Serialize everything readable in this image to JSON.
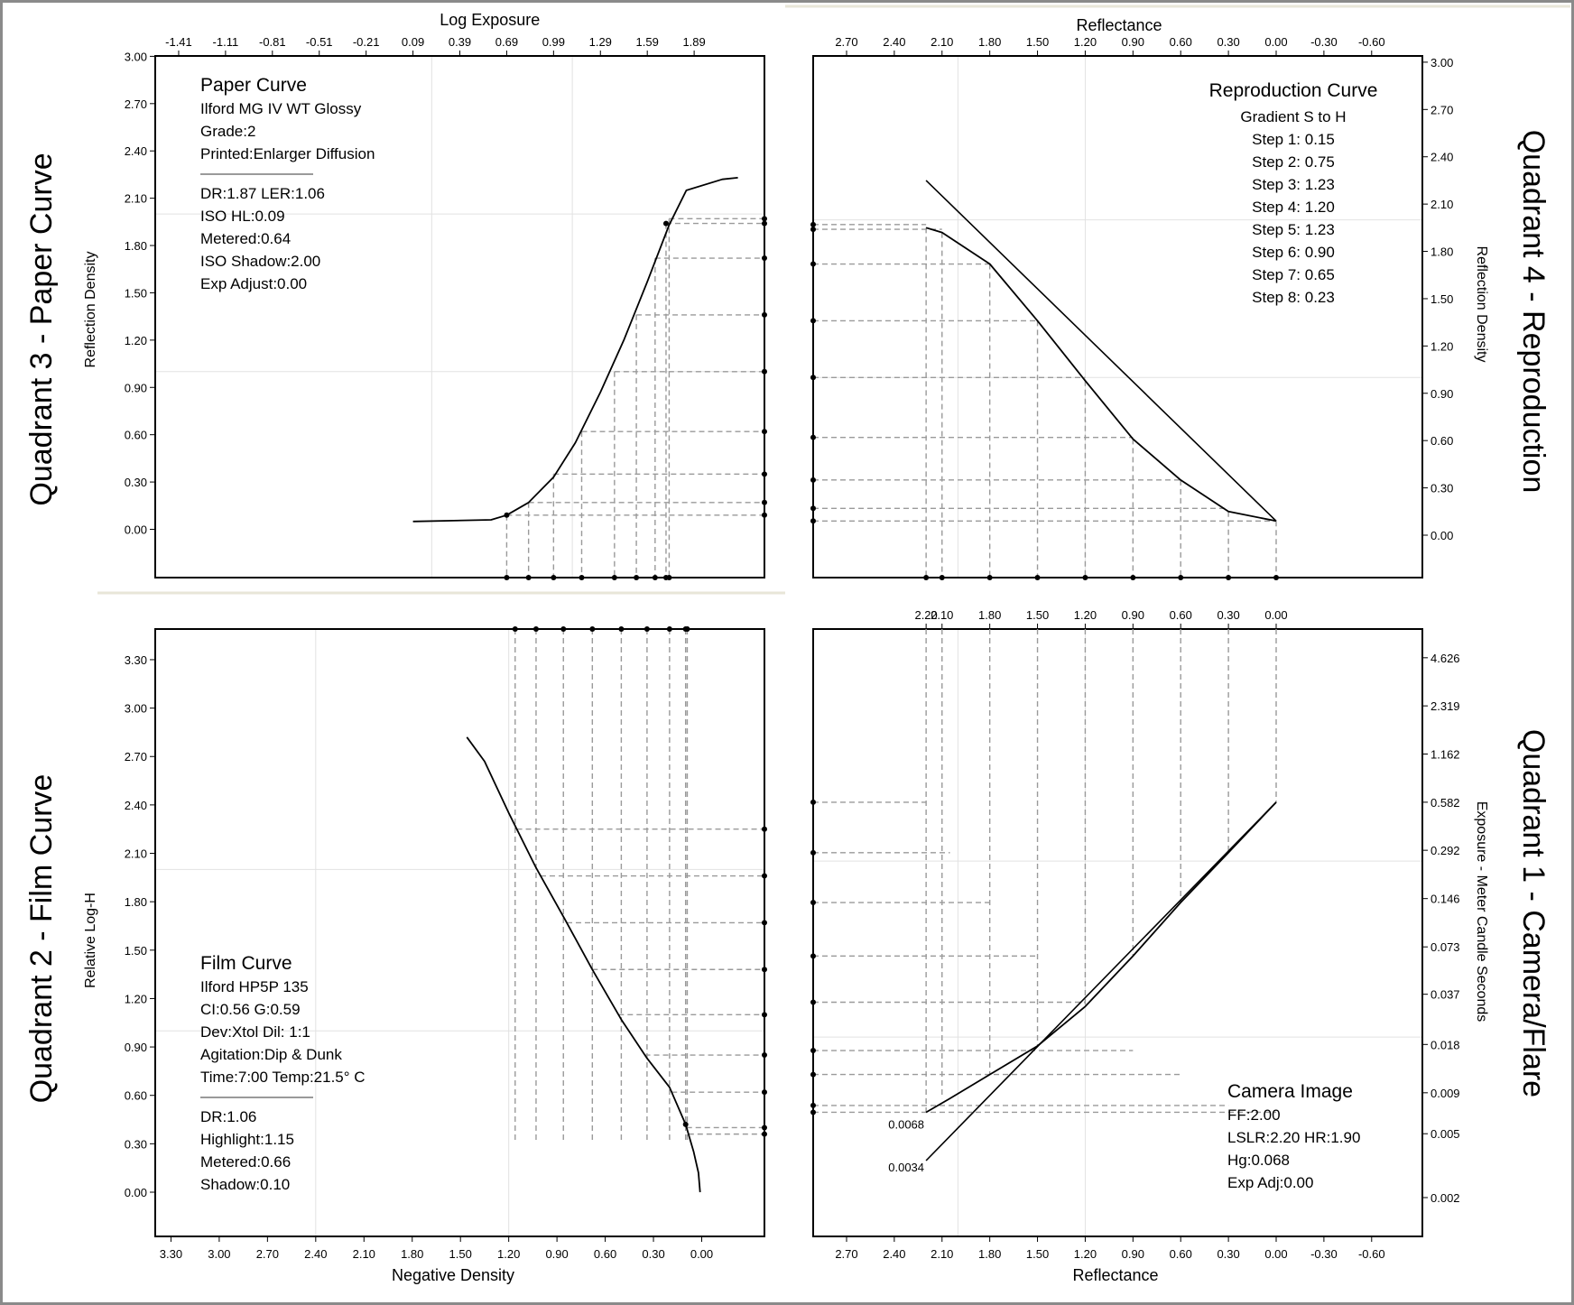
{
  "chart_data": [
    {
      "id": "q3",
      "type": "line",
      "quadrant_title": "Quadrant 3 - Paper Curve",
      "top_axis_title": "Log Exposure",
      "top_ticks": [
        "-1.41",
        "-1.11",
        "-0.81",
        "-0.51",
        "-0.21",
        "0.09",
        "0.39",
        "0.69",
        "0.99",
        "1.29",
        "1.59",
        "1.89"
      ],
      "y_title": "Reflection Density",
      "y_ticks": [
        "0.00",
        "0.30",
        "0.60",
        "0.90",
        "1.20",
        "1.50",
        "1.80",
        "2.10",
        "2.40",
        "2.70",
        "3.00"
      ],
      "xlim": [
        -1.56,
        2.34
      ],
      "ylim": [
        -0.3,
        3.0
      ],
      "annotation_title": "Paper Curve",
      "annotation_lines": [
        "Ilford MG IV WT  Glossy",
        "Grade:2",
        "Printed:Enlarger Diffusion"
      ],
      "annotation_lines2": [
        "DR:1.87  LER:1.06",
        "ISO HL:0.09",
        "Metered:0.64",
        "ISO Shadow:2.00",
        "Exp Adjust:0.00"
      ],
      "curve": [
        [
          0.09,
          0.05
        ],
        [
          0.59,
          0.06
        ],
        [
          0.69,
          0.09
        ],
        [
          0.83,
          0.17
        ],
        [
          0.99,
          0.33
        ],
        [
          1.13,
          0.55
        ],
        [
          1.29,
          0.87
        ],
        [
          1.44,
          1.2
        ],
        [
          1.59,
          1.57
        ],
        [
          1.73,
          1.93
        ],
        [
          1.84,
          2.15
        ],
        [
          2.07,
          2.22
        ],
        [
          2.17,
          2.23
        ]
      ],
      "markers": [
        [
          0.69,
          0.09
        ],
        [
          0.83,
          0.17
        ],
        [
          0.99,
          0.35
        ],
        [
          1.17,
          0.62
        ],
        [
          1.38,
          1.0
        ],
        [
          1.52,
          1.36
        ],
        [
          1.64,
          1.72
        ],
        [
          1.71,
          1.94
        ],
        [
          1.73,
          1.97
        ]
      ]
    },
    {
      "id": "q4",
      "type": "line",
      "quadrant_title": "Quadrant 4 - Reproduction",
      "top_axis_title": "Reflectance",
      "top_ticks": [
        "2.70",
        "2.40",
        "2.10",
        "1.80",
        "1.50",
        "1.20",
        "0.90",
        "0.60",
        "0.30",
        "0.00",
        "-0.30",
        "-0.60"
      ],
      "y_title": "Reflection Density",
      "y_ticks": [
        "0.00",
        "0.30",
        "0.60",
        "0.90",
        "1.20",
        "1.50",
        "1.80",
        "2.10",
        "2.40",
        "2.70",
        "3.00"
      ],
      "xlim": [
        2.92,
        -0.9
      ],
      "ylim": [
        -0.3,
        3.0
      ],
      "annotation_title": "Reproduction Curve",
      "annotation_lines": [
        "Gradient S to H",
        "Step 1: 0.15",
        "Step 2: 0.75",
        "Step 3: 1.23",
        "Step 4: 1.20",
        "Step 5: 1.23",
        "Step 6: 0.90",
        "Step 7: 0.65",
        "Step 8: 0.23"
      ],
      "ideal_line": [
        [
          2.2,
          2.25
        ],
        [
          0.0,
          0.09
        ]
      ],
      "curve": [
        [
          2.2,
          1.95
        ],
        [
          2.1,
          1.92
        ],
        [
          1.8,
          1.72
        ],
        [
          1.5,
          1.36
        ],
        [
          1.2,
          0.98
        ],
        [
          0.9,
          0.61
        ],
        [
          0.6,
          0.35
        ],
        [
          0.3,
          0.15
        ],
        [
          0.0,
          0.09
        ]
      ],
      "markers_left_y": [
        1.97,
        1.94,
        1.72,
        1.36,
        1.0,
        0.62,
        0.35,
        0.17,
        0.09
      ],
      "markers_bottom_x": [
        2.2,
        2.1,
        1.8,
        1.5,
        1.2,
        0.9,
        0.6,
        0.3,
        0.0
      ]
    },
    {
      "id": "q2",
      "type": "line",
      "quadrant_title": "Quadrant 2 - Film Curve",
      "x_title": "Negative Density",
      "x_ticks": [
        "3.30",
        "3.00",
        "2.70",
        "2.40",
        "2.10",
        "1.80",
        "1.50",
        "1.20",
        "0.90",
        "0.60",
        "0.30",
        "0.00"
      ],
      "y_title": "Relative Log-H",
      "y_ticks": [
        "0.00",
        "0.30",
        "0.60",
        "0.90",
        "1.20",
        "1.50",
        "1.80",
        "2.10",
        "2.40",
        "2.70",
        "3.00",
        "3.30"
      ],
      "xlim": [
        3.4,
        -0.42
      ],
      "ylim": [
        -0.28,
        3.5
      ],
      "annotation_title": "Film Curve",
      "annotation_lines": [
        "Ilford HP5P 135",
        "CI:0.56  G:0.59",
        "Dev:Xtol  Dil: 1:1",
        "Agitation:Dip & Dunk",
        "Time:7:00  Temp:21.5° C"
      ],
      "annotation_lines2": [
        "DR:1.06",
        "Highlight:1.15",
        "Metered:0.66",
        "Shadow:0.10"
      ],
      "curve": [
        [
          1.46,
          2.82
        ],
        [
          1.35,
          2.67
        ],
        [
          1.2,
          2.35
        ],
        [
          1.03,
          2.01
        ],
        [
          0.85,
          1.69
        ],
        [
          0.68,
          1.38
        ],
        [
          0.5,
          1.07
        ],
        [
          0.34,
          0.83
        ],
        [
          0.2,
          0.65
        ],
        [
          0.1,
          0.42
        ],
        [
          0.05,
          0.25
        ],
        [
          0.02,
          0.12
        ],
        [
          0.01,
          0.0
        ]
      ],
      "markers_top_x": [
        1.16,
        1.03,
        0.86,
        0.68,
        0.5,
        0.34,
        0.2,
        0.1,
        0.09
      ],
      "markers_right_y": [
        2.25,
        1.96,
        1.67,
        1.38,
        1.1,
        0.85,
        0.62,
        0.4,
        0.36
      ]
    },
    {
      "id": "q1",
      "type": "line",
      "quadrant_title": "Quadrant 1 - Camera/Flare",
      "top_ticks": [
        "2.20",
        "2.10",
        "1.80",
        "1.50",
        "1.20",
        "0.90",
        "0.60",
        "0.30",
        "0.00"
      ],
      "x_title": "Reflectance",
      "x_ticks": [
        "2.70",
        "2.40",
        "2.10",
        "1.80",
        "1.50",
        "1.20",
        "0.90",
        "0.60",
        "0.30",
        "0.00",
        "-0.30",
        "-0.60"
      ],
      "y_title": "Exposure - Meter Candle Seconds",
      "y_ticks": [
        "0.002",
        "0.005",
        "0.009",
        "0.018",
        "0.037",
        "0.073",
        "0.146",
        "0.292",
        "0.582",
        "1.162",
        "2.319",
        "4.626"
      ],
      "xlim": [
        2.92,
        -0.9
      ],
      "label_low1": "0.0068",
      "label_low2": "0.0034",
      "annotation_title": "Camera Image",
      "annotation_lines": [
        "FF:2.00",
        "LSLR:2.20 HR:1.90",
        "Hg:0.068",
        "Exp Adj:0.00"
      ],
      "ideal_line_y": [
        [
          2.2,
          0.0034
        ],
        [
          0.0,
          0.582
        ]
      ],
      "curve_y": [
        [
          2.2,
          0.0068
        ],
        [
          2.05,
          0.0083
        ],
        [
          1.8,
          0.0117
        ],
        [
          1.5,
          0.0176
        ],
        [
          1.2,
          0.031
        ],
        [
          0.9,
          0.064
        ],
        [
          0.6,
          0.138
        ],
        [
          0.3,
          0.282
        ],
        [
          0.0,
          0.582
        ]
      ],
      "markers_left_y": [
        0.582,
        0.282,
        0.138,
        0.064,
        0.033,
        0.0165,
        0.0117,
        0.0075,
        0.0068
      ]
    }
  ]
}
